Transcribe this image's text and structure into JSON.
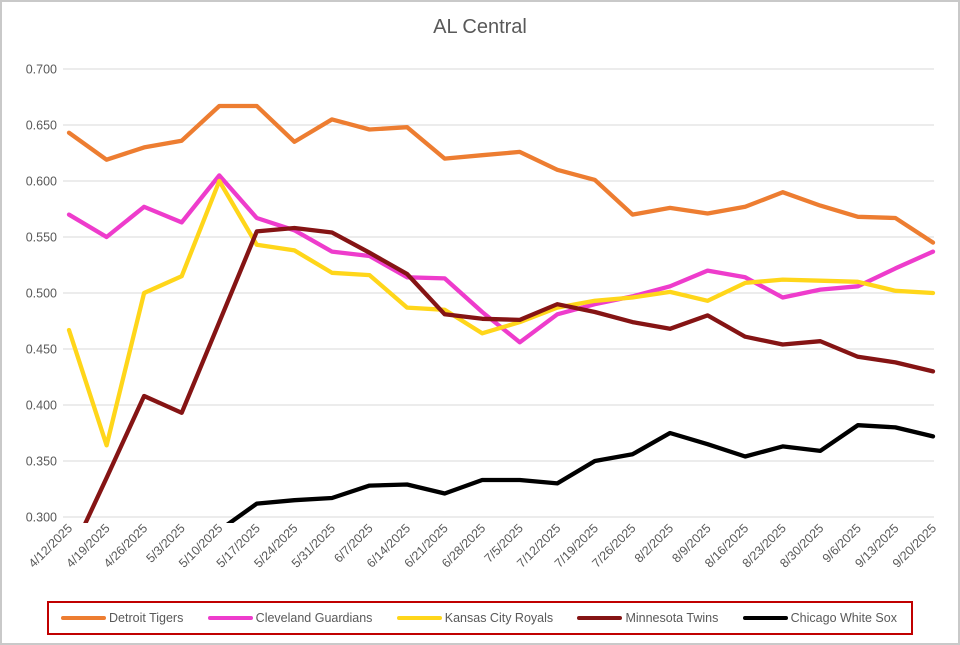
{
  "title": "AL Central",
  "colors": {
    "text": "#595959",
    "grid": "#d9d9d9",
    "legend_border": "#c00000",
    "frame_border": "#c9c9c9",
    "background": "#ffffff"
  },
  "legend": {
    "items": [
      {
        "label": "Detroit Tigers",
        "color": "#ed7d31"
      },
      {
        "label": "Cleveland Guardians",
        "color": "#ee3ccc"
      },
      {
        "label": "Kansas City Royals",
        "color": "#ffd61a"
      },
      {
        "label": "Minnesota Twins",
        "color": "#851414"
      },
      {
        "label": "Chicago White Sox",
        "color": "#000000"
      }
    ]
  },
  "chart_data": {
    "type": "line",
    "title": "AL Central",
    "xlabel": "",
    "ylabel": "",
    "ylim": [
      0.3,
      0.7
    ],
    "y_tick_step": 0.05,
    "y_tick_format_decimals": 3,
    "grid": true,
    "legend_position": "bottom",
    "x": [
      "4/12/2025",
      "4/19/2025",
      "4/26/2025",
      "5/3/2025",
      "5/10/2025",
      "5/17/2025",
      "5/24/2025",
      "5/31/2025",
      "6/7/2025",
      "6/14/2025",
      "6/21/2025",
      "6/28/2025",
      "7/5/2025",
      "7/12/2025",
      "7/19/2025",
      "7/26/2025",
      "8/2/2025",
      "8/9/2025",
      "8/16/2025",
      "8/23/2025",
      "8/30/2025",
      "9/6/2025",
      "9/13/2025",
      "9/20/2025"
    ],
    "series": [
      {
        "name": "Detroit Tigers",
        "color": "#ed7d31",
        "values": [
          0.643,
          0.619,
          0.63,
          0.636,
          0.667,
          0.667,
          0.635,
          0.655,
          0.646,
          0.648,
          0.62,
          0.623,
          0.626,
          0.61,
          0.601,
          0.57,
          0.576,
          0.571,
          0.577,
          0.59,
          0.578,
          0.568,
          0.567,
          0.545
        ]
      },
      {
        "name": "Cleveland Guardians",
        "color": "#ee3ccc",
        "values": [
          0.57,
          0.55,
          0.577,
          0.563,
          0.605,
          0.567,
          0.556,
          0.537,
          0.533,
          0.514,
          0.513,
          0.483,
          0.456,
          0.481,
          0.49,
          0.497,
          0.506,
          0.52,
          0.514,
          0.496,
          0.503,
          0.506,
          0.522,
          0.537
        ]
      },
      {
        "name": "Kansas City Royals",
        "color": "#ffd61a",
        "values": [
          0.467,
          0.364,
          0.5,
          0.515,
          0.6,
          0.543,
          0.538,
          0.518,
          0.516,
          0.487,
          0.485,
          0.464,
          0.474,
          0.487,
          0.493,
          0.496,
          0.501,
          0.493,
          0.509,
          0.512,
          0.511,
          0.51,
          0.502,
          0.5
        ]
      },
      {
        "name": "Minnesota Twins",
        "color": "#851414",
        "values": [
          0.263,
          0.335,
          0.408,
          0.393,
          0.474,
          0.555,
          0.558,
          0.554,
          0.536,
          0.517,
          0.481,
          0.477,
          0.476,
          0.49,
          0.483,
          0.474,
          0.468,
          0.48,
          0.461,
          0.454,
          0.457,
          0.443,
          0.438,
          0.43
        ]
      },
      {
        "name": "Chicago White Sox",
        "color": "#000000",
        "values": [
          null,
          null,
          null,
          null,
          0.288,
          0.312,
          0.315,
          0.317,
          0.328,
          0.329,
          0.321,
          0.333,
          0.333,
          0.33,
          0.35,
          0.356,
          0.375,
          0.365,
          0.354,
          0.363,
          0.359,
          0.382,
          0.38,
          0.372
        ]
      }
    ]
  }
}
